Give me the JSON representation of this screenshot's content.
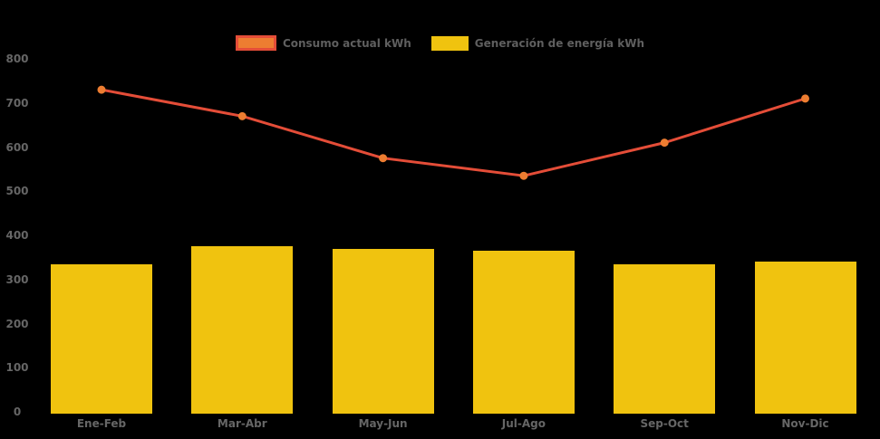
{
  "colors": {
    "background": "#000000",
    "bar": "#F0C30F",
    "line": "#E44D38",
    "point": "#ED7D31",
    "axis_text": "#666666",
    "legend_text": "#5F5F5F"
  },
  "legend": {
    "items": [
      {
        "label": "Consumo actual kWh"
      },
      {
        "label": "Generación de energía kWh"
      }
    ]
  },
  "chart_data": {
    "type": "combo",
    "categories": [
      "Ene-Feb",
      "Mar-Abr",
      "May-Jun",
      "Jul-Ago",
      "Sep-Oct",
      "Nov-Dic"
    ],
    "series": [
      {
        "name": "Consumo actual kWh",
        "type": "line",
        "color": "#E44D38",
        "point_color": "#ED7D31",
        "values": [
          730,
          670,
          575,
          535,
          610,
          710
        ]
      },
      {
        "name": "Generación de energía kWh",
        "type": "bar",
        "color": "#F0C30F",
        "values": [
          335,
          375,
          370,
          365,
          335,
          340
        ]
      }
    ],
    "title": "",
    "xlabel": "",
    "ylabel": "",
    "ylim": [
      0,
      800
    ],
    "yticks": [
      0,
      100,
      200,
      300,
      400,
      500,
      600,
      700,
      800
    ],
    "grid": false,
    "legend_position": "top"
  }
}
